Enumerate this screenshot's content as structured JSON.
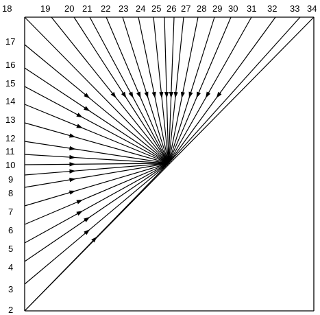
{
  "diagram": {
    "top_labels": [
      "18",
      "19",
      "20",
      "21",
      "22",
      "23",
      "24",
      "25",
      "26",
      "27",
      "28",
      "29",
      "30",
      "31",
      "32",
      "33",
      "34"
    ],
    "left_labels": [
      "17",
      "16",
      "15",
      "14",
      "13",
      "12",
      "11",
      "10",
      "9",
      "8",
      "7",
      "6",
      "5",
      "4",
      "3",
      "2"
    ],
    "bottom_left_label": "2",
    "line_color": "#000000",
    "background": "#ffffff"
  }
}
